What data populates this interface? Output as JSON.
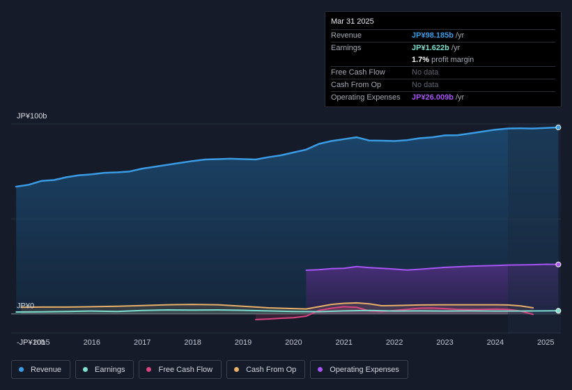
{
  "tooltip": {
    "date": "Mar 31 2025",
    "rows": [
      {
        "label": "Revenue",
        "value": "JP¥98.185b",
        "unit": " /yr",
        "color": "#3b9ce6"
      },
      {
        "label": "Earnings",
        "value": "JP¥1.622b",
        "unit": " /yr",
        "color": "#7de0d0"
      },
      {
        "label": "",
        "value": "1.7%",
        "unit": " profit margin",
        "color": "#ffffff"
      },
      {
        "label": "Free Cash Flow",
        "value": "No data",
        "unit": "",
        "color": "#5f6571"
      },
      {
        "label": "Cash From Op",
        "value": "No data",
        "unit": "",
        "color": "#5f6571"
      },
      {
        "label": "Operating Expenses",
        "value": "JP¥26.009b",
        "unit": " /yr",
        "color": "#a855f7"
      }
    ]
  },
  "legend": [
    {
      "label": "Revenue",
      "color": "#3b9ce6"
    },
    {
      "label": "Earnings",
      "color": "#7de0d0"
    },
    {
      "label": "Free Cash Flow",
      "color": "#d6457f"
    },
    {
      "label": "Cash From Op",
      "color": "#e8b069"
    },
    {
      "label": "Operating Expenses",
      "color": "#a855f7"
    }
  ],
  "chart_data": {
    "type": "area",
    "title": "",
    "ylim": [
      -10,
      100
    ],
    "y_labels": [
      {
        "value": 100,
        "text": "JP¥100b"
      },
      {
        "value": 0,
        "text": "JP¥0"
      },
      {
        "value": -10,
        "text": "-JP¥10b"
      }
    ],
    "x_ticks": [
      "2015",
      "2016",
      "2017",
      "2018",
      "2019",
      "2020",
      "2021",
      "2022",
      "2023",
      "2024",
      "2025"
    ],
    "x_range": [
      2014.4,
      2025.3
    ],
    "forecast_start": 2024.25,
    "series": [
      {
        "name": "Revenue",
        "color": "#3b9ce6",
        "fill": true,
        "points": [
          [
            2014.5,
            67
          ],
          [
            2014.75,
            68
          ],
          [
            2015.0,
            70
          ],
          [
            2015.25,
            70.5
          ],
          [
            2015.5,
            72
          ],
          [
            2015.75,
            73
          ],
          [
            2016.0,
            73.5
          ],
          [
            2016.25,
            74.3
          ],
          [
            2016.5,
            74.5
          ],
          [
            2016.75,
            75
          ],
          [
            2017.0,
            76.5
          ],
          [
            2017.25,
            77.5
          ],
          [
            2017.5,
            78.5
          ],
          [
            2017.75,
            79.5
          ],
          [
            2018.0,
            80.5
          ],
          [
            2018.25,
            81.3
          ],
          [
            2018.5,
            81.5
          ],
          [
            2018.75,
            81.7
          ],
          [
            2019.0,
            81.5
          ],
          [
            2019.25,
            81.3
          ],
          [
            2019.5,
            82.5
          ],
          [
            2019.75,
            83.5
          ],
          [
            2020.0,
            85
          ],
          [
            2020.25,
            86.5
          ],
          [
            2020.5,
            89.5
          ],
          [
            2020.75,
            91
          ],
          [
            2021.0,
            92
          ],
          [
            2021.25,
            93
          ],
          [
            2021.5,
            91.3
          ],
          [
            2021.75,
            91.2
          ],
          [
            2022.0,
            91
          ],
          [
            2022.25,
            91.5
          ],
          [
            2022.5,
            92.5
          ],
          [
            2022.75,
            93
          ],
          [
            2023.0,
            94
          ],
          [
            2023.25,
            94.1
          ],
          [
            2023.5,
            95
          ],
          [
            2023.75,
            96
          ],
          [
            2024.0,
            97
          ],
          [
            2024.25,
            97.6
          ],
          [
            2024.5,
            97.7
          ],
          [
            2024.75,
            97.6
          ],
          [
            2025.0,
            97.9
          ],
          [
            2025.25,
            98.185
          ]
        ]
      },
      {
        "name": "Earnings",
        "color": "#7de0d0",
        "fill": true,
        "points": [
          [
            2014.5,
            1.0
          ],
          [
            2015.0,
            1.1
          ],
          [
            2015.5,
            1.3
          ],
          [
            2016.0,
            1.5
          ],
          [
            2016.5,
            1.3
          ],
          [
            2017.0,
            1.8
          ],
          [
            2017.5,
            2.1
          ],
          [
            2018.0,
            2.0
          ],
          [
            2018.5,
            2.1
          ],
          [
            2019.0,
            1.9
          ],
          [
            2019.5,
            1.6
          ],
          [
            2020.0,
            1.3
          ],
          [
            2020.5,
            1.2
          ],
          [
            2021.0,
            1.6
          ],
          [
            2021.5,
            1.8
          ],
          [
            2022.0,
            1.5
          ],
          [
            2022.5,
            1.6
          ],
          [
            2023.0,
            1.5
          ],
          [
            2023.5,
            1.6
          ],
          [
            2024.0,
            1.5
          ],
          [
            2024.5,
            1.5
          ],
          [
            2025.0,
            1.6
          ],
          [
            2025.25,
            1.622
          ]
        ]
      },
      {
        "name": "Free Cash Flow",
        "color": "#d6457f",
        "fill": true,
        "points": [
          [
            2019.25,
            -3.0
          ],
          [
            2019.5,
            -2.7
          ],
          [
            2019.75,
            -2.3
          ],
          [
            2020.0,
            -2.0
          ],
          [
            2020.25,
            -1.2
          ],
          [
            2020.5,
            1.8
          ],
          [
            2020.75,
            3.0
          ],
          [
            2021.0,
            3.8
          ],
          [
            2021.25,
            3.5
          ],
          [
            2021.5,
            1.6
          ],
          [
            2021.75,
            1.2
          ],
          [
            2022.0,
            1.8
          ],
          [
            2022.25,
            2.4
          ],
          [
            2022.5,
            3.0
          ],
          [
            2022.75,
            3.1
          ],
          [
            2023.0,
            2.8
          ],
          [
            2023.25,
            2.4
          ],
          [
            2023.5,
            2.3
          ],
          [
            2023.75,
            2.4
          ],
          [
            2024.0,
            2.5
          ],
          [
            2024.25,
            2.4
          ],
          [
            2024.5,
            1.5
          ],
          [
            2024.75,
            -0.3
          ]
        ]
      },
      {
        "name": "Cash From Op",
        "color": "#e8b069",
        "fill": true,
        "points": [
          [
            2014.6,
            3.5
          ],
          [
            2015.0,
            3.6
          ],
          [
            2015.5,
            3.6
          ],
          [
            2016.0,
            3.8
          ],
          [
            2016.5,
            4.0
          ],
          [
            2017.0,
            4.4
          ],
          [
            2017.5,
            4.8
          ],
          [
            2018.0,
            5.0
          ],
          [
            2018.5,
            4.8
          ],
          [
            2019.0,
            4.0
          ],
          [
            2019.5,
            3.2
          ],
          [
            2020.0,
            2.8
          ],
          [
            2020.25,
            2.6
          ],
          [
            2020.5,
            3.8
          ],
          [
            2020.75,
            5.0
          ],
          [
            2021.0,
            5.6
          ],
          [
            2021.25,
            5.8
          ],
          [
            2021.5,
            5.3
          ],
          [
            2021.75,
            4.3
          ],
          [
            2022.0,
            4.4
          ],
          [
            2022.5,
            4.7
          ],
          [
            2023.0,
            4.8
          ],
          [
            2023.5,
            4.8
          ],
          [
            2024.0,
            4.8
          ],
          [
            2024.25,
            4.7
          ],
          [
            2024.5,
            4.2
          ],
          [
            2024.75,
            3.2
          ]
        ]
      },
      {
        "name": "Operating Expenses",
        "color": "#a855f7",
        "fill": true,
        "points": [
          [
            2020.25,
            23.0
          ],
          [
            2020.5,
            23.3
          ],
          [
            2020.75,
            23.8
          ],
          [
            2021.0,
            24.0
          ],
          [
            2021.25,
            24.9
          ],
          [
            2021.5,
            24.4
          ],
          [
            2021.75,
            24.0
          ],
          [
            2022.0,
            23.6
          ],
          [
            2022.25,
            23.1
          ],
          [
            2022.5,
            23.5
          ],
          [
            2022.75,
            24.0
          ],
          [
            2023.0,
            24.5
          ],
          [
            2023.25,
            24.8
          ],
          [
            2023.5,
            25.1
          ],
          [
            2023.75,
            25.3
          ],
          [
            2024.0,
            25.5
          ],
          [
            2024.25,
            25.7
          ],
          [
            2024.5,
            25.8
          ],
          [
            2024.75,
            25.9
          ],
          [
            2025.0,
            26.1
          ],
          [
            2025.25,
            26.009
          ]
        ]
      }
    ]
  }
}
